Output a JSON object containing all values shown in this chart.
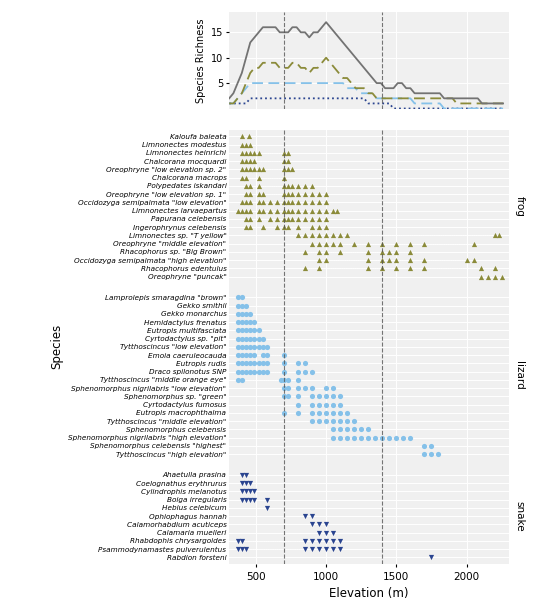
{
  "xlabel": "Elevation (m)",
  "ylabel_scatter": "Species",
  "ylabel_richness": "Species Richness",
  "xlim": [
    310,
    2300
  ],
  "xticks": [
    500,
    1000,
    1500,
    2000
  ],
  "vlines": [
    700,
    1400
  ],
  "richness_elev": [
    310,
    340,
    370,
    400,
    430,
    460,
    490,
    520,
    550,
    580,
    610,
    640,
    670,
    700,
    730,
    760,
    790,
    820,
    850,
    880,
    910,
    940,
    970,
    1000,
    1030,
    1060,
    1090,
    1120,
    1150,
    1180,
    1210,
    1240,
    1270,
    1300,
    1330,
    1360,
    1390,
    1420,
    1450,
    1480,
    1510,
    1540,
    1570,
    1600,
    1630,
    1660,
    1690,
    1720,
    1750,
    1780,
    1810,
    1840,
    1870,
    1900,
    1930,
    1960,
    1990,
    2020,
    2050,
    2080,
    2110,
    2140,
    2170,
    2200,
    2230,
    2260
  ],
  "richness_total": [
    2,
    3,
    5,
    7,
    10,
    13,
    14,
    15,
    16,
    16,
    16,
    16,
    15,
    15,
    15,
    16,
    16,
    15,
    15,
    14,
    15,
    15,
    16,
    17,
    16,
    15,
    14,
    13,
    12,
    11,
    10,
    9,
    8,
    7,
    6,
    5,
    5,
    4,
    4,
    4,
    5,
    5,
    4,
    4,
    3,
    3,
    3,
    3,
    3,
    3,
    3,
    2,
    2,
    2,
    2,
    2,
    2,
    2,
    2,
    2,
    1,
    1,
    1,
    1,
    1,
    1
  ],
  "richness_frog": [
    1,
    1,
    2,
    3,
    5,
    7,
    8,
    8,
    9,
    9,
    9,
    9,
    8,
    8,
    8,
    9,
    9,
    8,
    8,
    7,
    8,
    8,
    9,
    10,
    9,
    8,
    7,
    6,
    6,
    5,
    4,
    4,
    4,
    3,
    3,
    2,
    2,
    2,
    2,
    2,
    2,
    2,
    2,
    2,
    2,
    2,
    2,
    2,
    2,
    2,
    2,
    2,
    2,
    2,
    1,
    1,
    1,
    1,
    1,
    1,
    1,
    1,
    1,
    1,
    1,
    1
  ],
  "richness_lizard": [
    1,
    1,
    2,
    3,
    4,
    5,
    5,
    5,
    5,
    5,
    5,
    5,
    5,
    5,
    5,
    5,
    5,
    5,
    5,
    5,
    5,
    5,
    5,
    5,
    5,
    5,
    5,
    5,
    4,
    4,
    4,
    3,
    3,
    3,
    3,
    2,
    2,
    2,
    2,
    2,
    2,
    2,
    2,
    2,
    1,
    1,
    1,
    1,
    1,
    1,
    1,
    0,
    0,
    0,
    0,
    0,
    0,
    0,
    0,
    0,
    0,
    0,
    0,
    0,
    0,
    0
  ],
  "richness_snake": [
    1,
    1,
    1,
    1,
    1,
    2,
    2,
    2,
    2,
    2,
    2,
    2,
    2,
    2,
    2,
    2,
    2,
    2,
    2,
    2,
    2,
    2,
    2,
    2,
    2,
    2,
    2,
    2,
    2,
    2,
    2,
    2,
    2,
    1,
    1,
    1,
    1,
    1,
    1,
    0,
    0,
    0,
    0,
    0,
    0,
    0,
    0,
    0,
    0,
    0,
    0,
    0,
    0,
    0,
    0,
    0,
    0,
    0,
    0,
    0,
    0,
    0,
    0,
    0,
    0,
    0
  ],
  "color_total": "#737373",
  "color_frog": "#8B8B3A",
  "color_lizard": "#87CEEB",
  "color_snake": "#1F3A6E",
  "frog_color": "#8B8B3A",
  "lizard_color": "#85C1E9",
  "snake_color": "#2B4590",
  "frog_species": [
    {
      "name": "Kaloufa baleata",
      "elevations": [
        400,
        450
      ]
    },
    {
      "name": "Limnonectes modestus",
      "elevations": [
        400,
        430,
        460
      ]
    },
    {
      "name": "Limnonectes heinrichi",
      "elevations": [
        400,
        430,
        460,
        490,
        520,
        700,
        730
      ]
    },
    {
      "name": "Chalcorana mocquardi",
      "elevations": [
        400,
        430,
        460,
        490,
        700,
        730
      ]
    },
    {
      "name": "Oreophryne \"low elevation sp. 2\"",
      "elevations": [
        400,
        430,
        460,
        490,
        520,
        550,
        700,
        730,
        760
      ]
    },
    {
      "name": "Chalcorana macrops",
      "elevations": [
        400,
        430,
        520,
        700
      ]
    },
    {
      "name": "Polypedates iskandari",
      "elevations": [
        430,
        460,
        520,
        700,
        730,
        760,
        800,
        850,
        900
      ]
    },
    {
      "name": "Oreophryne \"low elevation sp. 1\"",
      "elevations": [
        430,
        460,
        520,
        550,
        700,
        730,
        760,
        800,
        850,
        900,
        950,
        1000
      ]
    },
    {
      "name": "Occidozyga semipalmata \"low elevation\"",
      "elevations": [
        400,
        430,
        460,
        520,
        550,
        600,
        650,
        700,
        730,
        760,
        800,
        850,
        900,
        950,
        1000
      ]
    },
    {
      "name": "Limnonectes larvaepartus",
      "elevations": [
        370,
        400,
        430,
        460,
        520,
        550,
        600,
        650,
        700,
        730,
        760,
        800,
        850,
        900,
        950,
        1000,
        1050,
        1080
      ]
    },
    {
      "name": "Papurana celebensis",
      "elevations": [
        430,
        460,
        520,
        600,
        650,
        700,
        730,
        760,
        800,
        850,
        900,
        950,
        1000
      ]
    },
    {
      "name": "Ingerophrynus celebensis",
      "elevations": [
        430,
        460,
        550,
        650,
        700,
        730,
        800,
        900,
        950,
        1000
      ]
    },
    {
      "name": "Limnonectes sp. \"T yellow\"",
      "elevations": [
        800,
        850,
        900,
        950,
        1000,
        1050,
        1100,
        1150,
        2200,
        2230
      ]
    },
    {
      "name": "Oreophryne \"middle elevation\"",
      "elevations": [
        900,
        950,
        1000,
        1050,
        1100,
        1200,
        1300,
        1400,
        1500,
        1600,
        1700,
        2050
      ]
    },
    {
      "name": "Rhacophorus sp. \"Big Brown\"",
      "elevations": [
        850,
        950,
        1000,
        1100,
        1300,
        1400,
        1450,
        1500,
        1600
      ]
    },
    {
      "name": "Occidozyga semipalmata \"high elevation\"",
      "elevations": [
        950,
        1000,
        1300,
        1400,
        1450,
        1500,
        1600,
        1700,
        2000,
        2050
      ]
    },
    {
      "name": "Rhacophorus edentulus",
      "elevations": [
        850,
        950,
        1300,
        1400,
        1500,
        1600,
        1700,
        2100,
        2200
      ]
    },
    {
      "name": "Oreophryne \"puncak\"",
      "elevations": [
        2100,
        2150,
        2200,
        2250
      ]
    }
  ],
  "lizard_species": [
    {
      "name": "Lamprolepis smaragdina \"brown\"",
      "elevations": [
        370,
        400
      ]
    },
    {
      "name": "Gekko smithii",
      "elevations": [
        370,
        400,
        430
      ]
    },
    {
      "name": "Gekko monarchus",
      "elevations": [
        370,
        400,
        430,
        460
      ]
    },
    {
      "name": "Hemidactylus frenatus",
      "elevations": [
        370,
        400,
        430,
        460,
        490
      ]
    },
    {
      "name": "Eutropis multifasciata",
      "elevations": [
        370,
        400,
        430,
        460,
        490,
        520
      ]
    },
    {
      "name": "Cyrtodactylus sp. \"pit\"",
      "elevations": [
        370,
        400,
        430,
        460,
        490,
        520,
        550
      ]
    },
    {
      "name": "Tytthoscincus \"low elevation\"",
      "elevations": [
        370,
        400,
        430,
        460,
        490,
        520,
        550,
        580
      ]
    },
    {
      "name": "Emoia caeruleocauda",
      "elevations": [
        370,
        400,
        430,
        460,
        490,
        550,
        580,
        700
      ]
    },
    {
      "name": "Eutropis rudis",
      "elevations": [
        370,
        400,
        430,
        460,
        490,
        520,
        550,
        580,
        700,
        800,
        850
      ]
    },
    {
      "name": "Draco spilonotus SNP",
      "elevations": [
        370,
        400,
        430,
        460,
        490,
        520,
        550,
        580,
        700,
        800,
        850,
        900
      ]
    },
    {
      "name": "Tytthoscincus \"middle orange eye\"",
      "elevations": [
        370,
        400,
        680,
        700,
        730,
        800
      ]
    },
    {
      "name": "Sphenomorphus nigrilabris \"low elevation\"",
      "elevations": [
        700,
        730,
        800,
        850,
        900,
        1000,
        1050
      ]
    },
    {
      "name": "Sphenomorphus sp. \"green\"",
      "elevations": [
        700,
        730,
        800,
        900,
        950,
        1000,
        1050,
        1100
      ]
    },
    {
      "name": "Cyrtodactylus fumosus",
      "elevations": [
        800,
        900,
        950,
        1000,
        1050,
        1100
      ]
    },
    {
      "name": "Eutropis macrophthalma",
      "elevations": [
        700,
        800,
        900,
        950,
        1000,
        1050,
        1100,
        1150
      ]
    },
    {
      "name": "Tytthoscincus \"middle elevation\"",
      "elevations": [
        900,
        950,
        1000,
        1050,
        1100,
        1150,
        1200
      ]
    },
    {
      "name": "Sphenomorphus celebensis",
      "elevations": [
        1050,
        1100,
        1150,
        1200,
        1250,
        1300
      ]
    },
    {
      "name": "Sphenomorphus nigrilabris \"high elevation\"",
      "elevations": [
        1050,
        1100,
        1150,
        1200,
        1250,
        1300,
        1350,
        1400,
        1450,
        1500,
        1550,
        1600
      ]
    },
    {
      "name": "Sphenomorphus celebensis \"highest\"",
      "elevations": [
        1700,
        1750
      ]
    },
    {
      "name": "Tytthoscincus \"high elevation\"",
      "elevations": [
        1700,
        1750,
        1800
      ]
    }
  ],
  "snake_species": [
    {
      "name": "Ahaetulla prasina",
      "elevations": [
        400,
        430
      ]
    },
    {
      "name": "Coelognathus erythrurus",
      "elevations": [
        400,
        430,
        460
      ]
    },
    {
      "name": "Cylindrophis melanotus",
      "elevations": [
        400,
        430,
        460,
        490
      ]
    },
    {
      "name": "Boiga irregularis",
      "elevations": [
        400,
        430,
        460,
        490,
        580
      ]
    },
    {
      "name": "Hebius celebicum",
      "elevations": [
        580
      ]
    },
    {
      "name": "Ophiophagus hannah",
      "elevations": [
        850,
        900
      ]
    },
    {
      "name": "Calamorhabdium acuticeps",
      "elevations": [
        900,
        950,
        1000
      ]
    },
    {
      "name": "Calamaria muelleri",
      "elevations": [
        950,
        1000,
        1050
      ]
    },
    {
      "name": "Rhabdophis chrysargoides",
      "elevations": [
        370,
        400,
        850,
        900,
        950,
        1000,
        1050,
        1100
      ]
    },
    {
      "name": "Psammodynamastes pulverulentus",
      "elevations": [
        370,
        400,
        430,
        850,
        900,
        950,
        1000,
        1050,
        1100
      ]
    },
    {
      "name": "Rabdion forsteni",
      "elevations": [
        1750
      ]
    }
  ],
  "figsize": [
    5.59,
    6.0
  ],
  "dpi": 100
}
